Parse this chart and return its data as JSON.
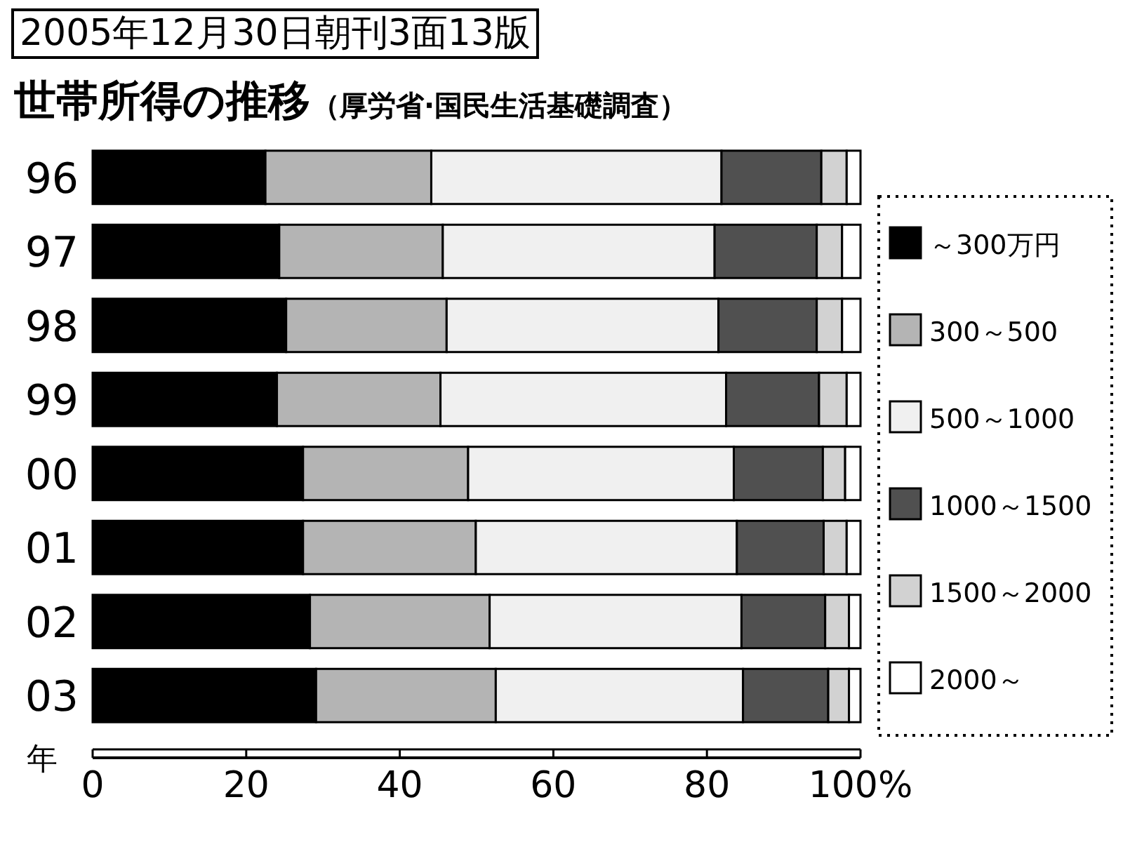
{
  "chart_data": {
    "type": "bar",
    "orientation": "horizontal",
    "stacked": true,
    "title": "世帯所得の推移",
    "subtitle": "（厚労省·国民生活基礎調査）",
    "annotations": [
      "2005年12月30日朝刊3面13版"
    ],
    "ylabel": "年",
    "categories": [
      "96",
      "97",
      "98",
      "99",
      "00",
      "01",
      "02",
      "03"
    ],
    "series": [
      {
        "name": "～300万円",
        "color": "#000000",
        "values": [
          22.5,
          24.3,
          25.2,
          24.0,
          27.4,
          27.4,
          28.3,
          29.1
        ]
      },
      {
        "name": "300～500",
        "color": "#b4b4b4",
        "values": [
          21.6,
          21.3,
          20.9,
          21.3,
          21.5,
          22.5,
          23.4,
          23.4
        ]
      },
      {
        "name": "500～1000",
        "color": "#f0f0f0",
        "values": [
          37.8,
          35.4,
          35.4,
          37.2,
          34.6,
          34.0,
          32.8,
          32.2
        ]
      },
      {
        "name": "1000～1500",
        "color": "#505050",
        "values": [
          13.0,
          13.3,
          12.8,
          12.1,
          11.6,
          11.3,
          10.9,
          11.1
        ]
      },
      {
        "name": "1500～2000",
        "color": "#d2d2d2",
        "values": [
          3.3,
          3.3,
          3.3,
          3.6,
          2.9,
          3.0,
          3.1,
          2.7
        ]
      },
      {
        "name": "2000～",
        "color": "#ffffff",
        "values": [
          1.8,
          2.4,
          2.4,
          1.8,
          2.0,
          1.8,
          1.5,
          1.5
        ]
      }
    ],
    "xlim": [
      0,
      100
    ],
    "xticks": [
      0,
      20,
      40,
      60,
      80,
      {
        "value": 100,
        "label": "100%"
      }
    ],
    "legend": "right",
    "grid": false
  }
}
